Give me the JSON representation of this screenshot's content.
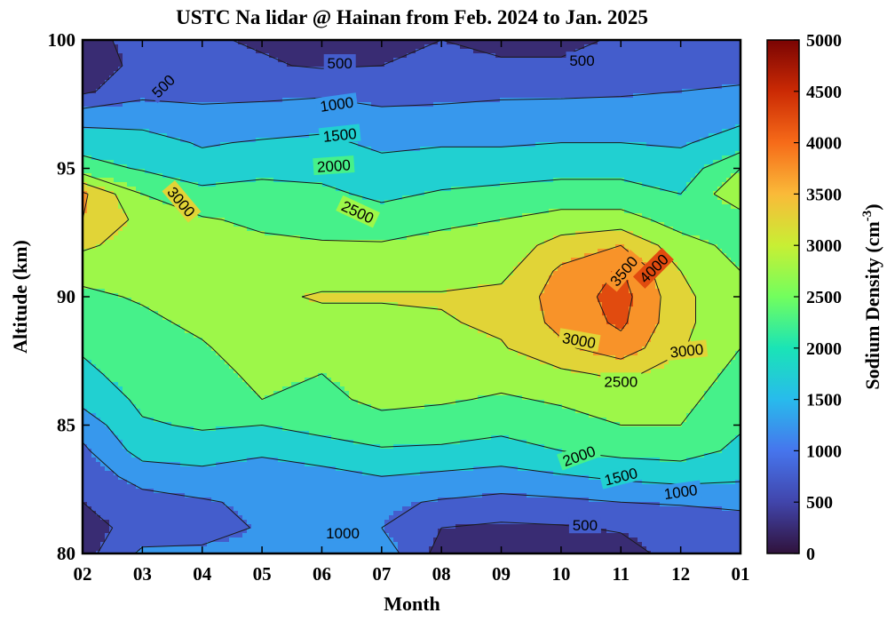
{
  "chart_data": {
    "type": "heatmap",
    "subtype": "filled-contour",
    "title": "USTC Na lidar @ Hainan from Feb. 2024 to Jan. 2025",
    "xlabel": "Month",
    "ylabel": "Altitude (km)",
    "x_ticks": [
      "02",
      "03",
      "04",
      "05",
      "06",
      "07",
      "08",
      "09",
      "10",
      "11",
      "12",
      "01"
    ],
    "y_ticks": [
      "80",
      "85",
      "90",
      "95",
      "100"
    ],
    "ylim": [
      80,
      100
    ],
    "colorbar": {
      "label_main": "Sodium  Density  (cm",
      "label_sup": "-3",
      "label_end": ")",
      "ticks": [
        "0",
        "500",
        "1000",
        "1500",
        "2000",
        "2500",
        "3000",
        "3500",
        "4000",
        "4500",
        "5000"
      ],
      "range": [
        0,
        5000
      ],
      "position": "right",
      "colormap": "turbo"
    },
    "contour_levels": [
      500,
      1000,
      1500,
      2000,
      2500,
      3000,
      3500,
      4000
    ],
    "contour_labels": [
      {
        "text": "500",
        "x": 2.35,
        "y": 98.2,
        "rot": -45
      },
      {
        "text": "500",
        "x": 5.3,
        "y": 99.1,
        "rot": 0
      },
      {
        "text": "500",
        "x": 9.35,
        "y": 99.2,
        "rot": 0
      },
      {
        "text": "1000",
        "x": 5.25,
        "y": 97.5,
        "rot": -8
      },
      {
        "text": "1500",
        "x": 5.3,
        "y": 96.3,
        "rot": -6
      },
      {
        "text": "2000",
        "x": 5.2,
        "y": 95.1,
        "rot": -4
      },
      {
        "text": "2500",
        "x": 5.6,
        "y": 93.3,
        "rot": 25
      },
      {
        "text": "3000",
        "x": 2.65,
        "y": 93.7,
        "rot": 50
      },
      {
        "text": "3500",
        "x": 10.05,
        "y": 91.0,
        "rot": -50
      },
      {
        "text": "4000",
        "x": 10.55,
        "y": 91.1,
        "rot": -45
      },
      {
        "text": "3000",
        "x": 9.3,
        "y": 88.3,
        "rot": 10
      },
      {
        "text": "3000",
        "x": 11.1,
        "y": 87.9,
        "rot": -6
      },
      {
        "text": "2500",
        "x": 10.0,
        "y": 86.7,
        "rot": 0
      },
      {
        "text": "2000",
        "x": 9.3,
        "y": 83.8,
        "rot": -20
      },
      {
        "text": "1500",
        "x": 10.0,
        "y": 83.0,
        "rot": -14
      },
      {
        "text": "1000",
        "x": 11.0,
        "y": 82.4,
        "rot": -8
      },
      {
        "text": "1000",
        "x": 5.35,
        "y": 80.8,
        "rot": 0
      },
      {
        "text": "500",
        "x": 9.4,
        "y": 81.1,
        "rot": 0
      }
    ],
    "density_field": {
      "x": [
        "02",
        "03",
        "04",
        "05",
        "06",
        "07",
        "08",
        "09",
        "10",
        "11",
        "12",
        "01"
      ],
      "y": [
        80,
        81,
        82,
        83,
        84,
        85,
        86,
        87,
        88,
        89,
        90,
        91,
        92,
        93,
        94,
        95,
        96,
        97,
        98,
        99,
        100
      ],
      "values": [
        [
          300,
          1100,
          1100,
          1100,
          1100,
          1300,
          300,
          200,
          200,
          300,
          700,
          800
        ],
        [
          300,
          700,
          800,
          1050,
          1050,
          1000,
          500,
          400,
          450,
          550,
          650,
          800
        ],
        [
          500,
          800,
          950,
          1100,
          1150,
          1100,
          950,
          850,
          900,
          1000,
          1050,
          1100
        ],
        [
          700,
          1200,
          1300,
          1200,
          1300,
          1500,
          1400,
          1300,
          1450,
          1600,
          1700,
          1600
        ],
        [
          900,
          1700,
          1800,
          1600,
          1800,
          1950,
          1900,
          1800,
          2000,
          2150,
          2200,
          1900
        ],
        [
          1200,
          1950,
          2050,
          2000,
          2150,
          2300,
          2300,
          2150,
          2350,
          2500,
          2500,
          2050
        ],
        [
          1650,
          2100,
          2200,
          2500,
          2350,
          2650,
          2550,
          2450,
          2550,
          2700,
          2650,
          2200
        ],
        [
          1900,
          2200,
          2350,
          2600,
          2500,
          2650,
          2700,
          2650,
          2900,
          3100,
          2800,
          2350
        ],
        [
          2050,
          2300,
          2450,
          2750,
          2650,
          2700,
          2900,
          2950,
          3400,
          3800,
          3050,
          2500
        ],
        [
          2250,
          2400,
          2600,
          2800,
          2850,
          2850,
          2950,
          3100,
          3650,
          4100,
          3150,
          2550
        ],
        [
          2400,
          2550,
          2750,
          2900,
          3050,
          3050,
          3050,
          3150,
          3700,
          4200,
          3150,
          2550
        ],
        [
          2650,
          2650,
          2750,
          2750,
          2800,
          2800,
          2800,
          2850,
          3600,
          4050,
          3000,
          2500
        ],
        [
          3100,
          2750,
          2650,
          2600,
          2550,
          2550,
          2650,
          2700,
          3200,
          3500,
          2700,
          2350
        ],
        [
          3500,
          2850,
          2550,
          2400,
          2300,
          2200,
          2400,
          2500,
          2700,
          2700,
          2300,
          2250
        ],
        [
          3600,
          2500,
          2150,
          2200,
          2100,
          1900,
          2050,
          2150,
          2200,
          2200,
          2000,
          2900
        ],
        [
          2200,
          1950,
          1700,
          1850,
          1850,
          1650,
          1750,
          1750,
          1850,
          1850,
          1700,
          2500
        ],
        [
          1800,
          1700,
          1450,
          1550,
          1600,
          1400,
          1450,
          1450,
          1500,
          1500,
          1450,
          1700
        ],
        [
          1300,
          1300,
          1150,
          1150,
          1300,
          1100,
          1150,
          1200,
          1250,
          1200,
          1250,
          1400
        ],
        [
          400,
          850,
          850,
          900,
          900,
          850,
          850,
          900,
          900,
          950,
          1000,
          1100
        ],
        [
          300,
          600,
          600,
          550,
          450,
          500,
          600,
          550,
          550,
          700,
          700,
          700
        ],
        [
          450,
          550,
          550,
          450,
          300,
          400,
          500,
          400,
          400,
          550,
          600,
          600
        ]
      ]
    }
  }
}
